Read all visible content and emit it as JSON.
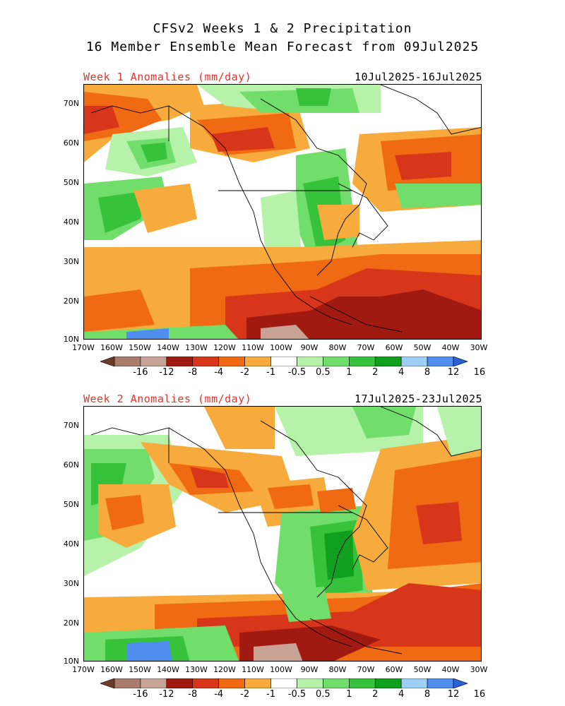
{
  "header": {
    "line1": "CFSv2 Weeks 1 & 2 Precipitation",
    "line2": "16 Member Ensemble Mean Forecast from 09Jul2025"
  },
  "panels": [
    {
      "label": "Week 1 Anomalies (mm/day)",
      "dates": "10Jul2025-16Jul2025"
    },
    {
      "label": "Week 2 Anomalies (mm/day)",
      "dates": "17Jul2025-23Jul2025"
    }
  ],
  "axes": {
    "lat_labels": [
      "70N",
      "60N",
      "50N",
      "40N",
      "30N",
      "20N",
      "10N"
    ],
    "lon_labels": [
      "170W",
      "160W",
      "150W",
      "140W",
      "130W",
      "120W",
      "110W",
      "100W",
      "90W",
      "80W",
      "70W",
      "60W",
      "50W",
      "40W",
      "30W"
    ]
  },
  "colorbar": {
    "labels": [
      "-16",
      "-12",
      "-8",
      "-4",
      "-2",
      "-1",
      "-0.5",
      "0.5",
      "1",
      "2",
      "4",
      "8",
      "12",
      "16"
    ],
    "colors": [
      "#6e3d28",
      "#a87b6b",
      "#c9a296",
      "#a11a12",
      "#d8361a",
      "#f06a14",
      "#f6ab3c",
      "#ffffff",
      "#b6f2aa",
      "#71dd6a",
      "#37c23c",
      "#10a01e",
      "#9ecff6",
      "#4f8eef",
      "#2a62d6"
    ]
  },
  "palette": {
    "title_color": "#000000",
    "anomaly_label_color": "#e0332e"
  }
}
